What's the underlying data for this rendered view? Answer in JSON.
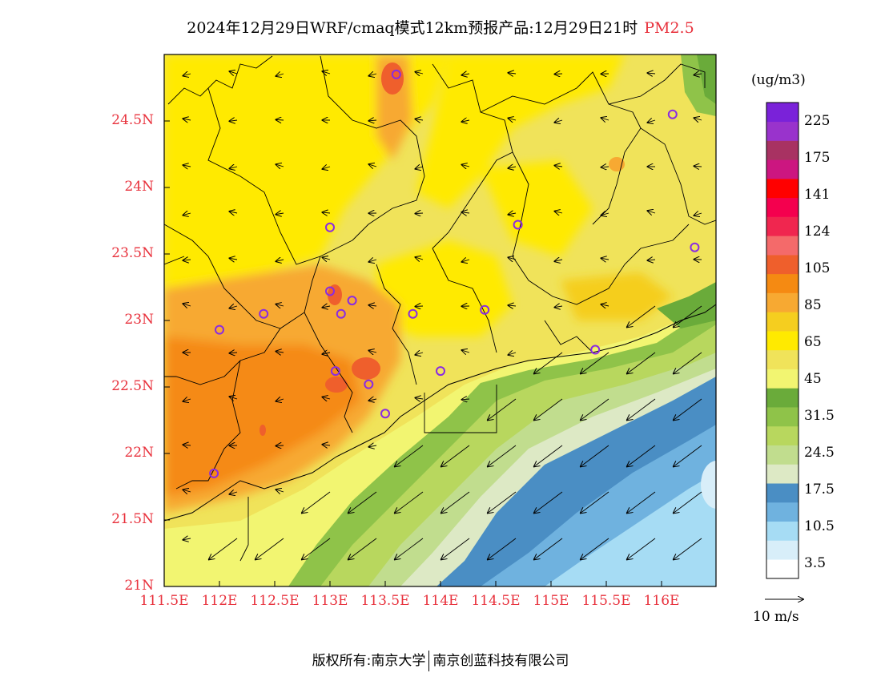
{
  "header": {
    "title": "2024年12月29日WRF/cmaq模式12km预报产品:12月29日21时",
    "variable": "PM2.5"
  },
  "axes": {
    "y_ticks": [
      "24.5N",
      "24N",
      "23.5N",
      "23N",
      "22.5N",
      "22N",
      "21.5N",
      "21N"
    ],
    "x_ticks": [
      "111.5E",
      "112E",
      "112.5E",
      "113E",
      "113.5E",
      "114E",
      "114.5E",
      "115E",
      "115.5E",
      "116E"
    ]
  },
  "colorbar": {
    "unit": "(ug/m3)",
    "labels": [
      "225",
      "175",
      "141",
      "124",
      "105",
      "85",
      "65",
      "45",
      "31.5",
      "24.5",
      "17.5",
      "10.5",
      "3.5"
    ],
    "colors": [
      "#ffffff",
      "#d8eef9",
      "#a6dcf4",
      "#6fb2df",
      "#4a8ec4",
      "#dde9c5",
      "#c1dd8e",
      "#b8d75e",
      "#8fc349",
      "#6aab3a",
      "#f2f571",
      "#f0e35a",
      "#ffea00",
      "#f5ce1f",
      "#f7a932",
      "#f58a12",
      "#ef5f2c",
      "#f46a6a",
      "#f0264f",
      "#f4004e",
      "#ff0000",
      "#cc1680",
      "#a83262",
      "#9933cc",
      "#7a22d9"
    ]
  },
  "wind": {
    "reference_label": "10 m/s"
  },
  "stations": [
    {
      "lon": 113.6,
      "lat": 24.85
    },
    {
      "lon": 116.1,
      "lat": 24.55
    },
    {
      "lon": 113.0,
      "lat": 23.7
    },
    {
      "lon": 114.7,
      "lat": 23.72
    },
    {
      "lon": 116.3,
      "lat": 23.55
    },
    {
      "lon": 113.0,
      "lat": 23.22
    },
    {
      "lon": 113.2,
      "lat": 23.15
    },
    {
      "lon": 112.4,
      "lat": 23.05
    },
    {
      "lon": 113.1,
      "lat": 23.05
    },
    {
      "lon": 113.75,
      "lat": 23.05
    },
    {
      "lon": 114.4,
      "lat": 23.08
    },
    {
      "lon": 112.0,
      "lat": 22.93
    },
    {
      "lon": 115.4,
      "lat": 22.78
    },
    {
      "lon": 113.05,
      "lat": 22.62
    },
    {
      "lon": 114.0,
      "lat": 22.62
    },
    {
      "lon": 113.35,
      "lat": 22.52
    },
    {
      "lon": 113.5,
      "lat": 22.3
    },
    {
      "lon": 111.95,
      "lat": 21.85
    }
  ],
  "footer": {
    "left": "版权所有:南京大学",
    "right": "南京创蓝科技有限公司"
  }
}
